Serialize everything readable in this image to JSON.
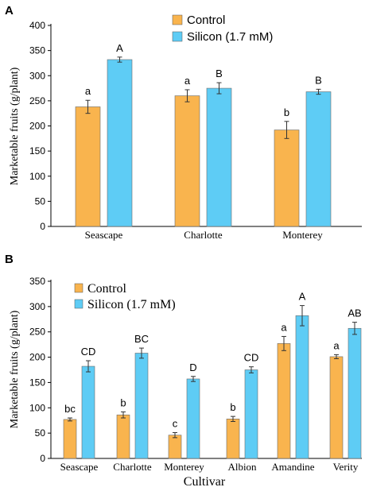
{
  "colors": {
    "control": "#F9B44E",
    "silicon": "#5ECCF5"
  },
  "chart_data": [
    {
      "panel": "A",
      "type": "bar",
      "categories": [
        "Seascape",
        "Charlotte",
        "Monterey"
      ],
      "series": [
        {
          "name": "Control",
          "values": [
            238,
            260,
            192
          ],
          "errors": [
            13,
            12,
            17
          ],
          "letters": [
            "a",
            "a",
            "b"
          ]
        },
        {
          "name": "Silicon (1.7 mM)",
          "values": [
            332,
            275,
            268
          ],
          "errors": [
            5,
            11,
            5
          ],
          "letters": [
            "A",
            "B",
            "B"
          ]
        }
      ],
      "ylabel": "Marketable fruits (g/plant)",
      "xlabel": "",
      "ylim": [
        0,
        400
      ],
      "yticks": [
        "0",
        "50",
        "100",
        "150",
        "200",
        "250",
        "300",
        "350",
        "400"
      ],
      "legend": "top-center",
      "grid": false
    },
    {
      "panel": "B",
      "type": "bar",
      "categories": [
        "Seascape",
        "Charlotte",
        "Monterey",
        "Albion",
        "Amandine",
        "Verity"
      ],
      "series": [
        {
          "name": "Control",
          "values": [
            77,
            86,
            46,
            78,
            227,
            201
          ],
          "errors": [
            3,
            6,
            5,
            5,
            14,
            4
          ],
          "letters": [
            "bc",
            "b",
            "c",
            "b",
            "a",
            "a"
          ]
        },
        {
          "name": "Silicon (1.7 mM)",
          "values": [
            182,
            208,
            157,
            175,
            282,
            257
          ],
          "errors": [
            11,
            10,
            5,
            6,
            20,
            12
          ],
          "letters": [
            "CD",
            "BC",
            "D",
            "CD",
            "A",
            "AB"
          ]
        }
      ],
      "ylabel": "Marketable fruits (g/plant)",
      "xlabel": "Cultivar",
      "ylim": [
        0,
        350
      ],
      "yticks": [
        "0",
        "50",
        "100",
        "150",
        "200",
        "250",
        "300",
        "350"
      ],
      "legend": "top-left",
      "grid": false
    }
  ]
}
